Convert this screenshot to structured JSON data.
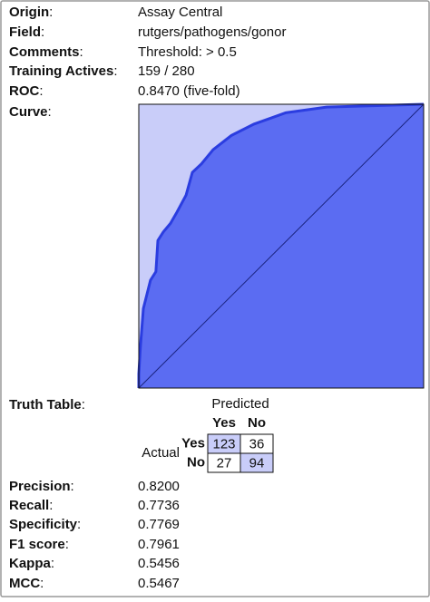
{
  "fields": [
    {
      "label": "Origin",
      "sep": ":",
      "value": "Assay Central"
    },
    {
      "label": "Field",
      "sep": ":",
      "value": "rutgers/pathogens/gonor"
    },
    {
      "label": "Comments",
      "sep": ":",
      "value": "Threshold: > 0.5"
    },
    {
      "label": "Training Actives",
      "sep": ":",
      "value": "159 / 280"
    },
    {
      "label": "ROC",
      "sep": ":",
      "value": "0.8470 (five-fold)"
    },
    {
      "label": "Curve",
      "sep": ":"
    }
  ],
  "chart_data": {
    "type": "line",
    "x": [
      0,
      0,
      0.006,
      0.016,
      0.041,
      0.06,
      0.067,
      0.086,
      0.111,
      0.134,
      0.166,
      0.188,
      0.22,
      0.261,
      0.325,
      0.404,
      0.516,
      0.659,
      1
    ],
    "series": [
      {
        "color": "#2b3de0",
        "values": [
          0,
          0.05,
          0.15,
          0.28,
          0.38,
          0.41,
          0.52,
          0.55,
          0.58,
          0.62,
          0.68,
          0.76,
          0.79,
          0.84,
          0.89,
          0.93,
          0.97,
          0.99,
          1
        ]
      }
    ],
    "xlim": [
      0,
      1
    ],
    "ylim": [
      0,
      1
    ],
    "fill": "#5b6cf2",
    "background": "#c9cdf9",
    "diagonal": true
  },
  "truth_table": {
    "label": "Truth Table",
    "sep": ":",
    "predicted": "Predicted",
    "actual": "Actual",
    "columns": [
      "Yes",
      "No"
    ],
    "rows": [
      {
        "label": "Yes",
        "cells": [
          "123",
          "36"
        ]
      },
      {
        "label": "No",
        "cells": [
          "27",
          "94"
        ]
      }
    ]
  },
  "metrics": [
    {
      "label": "Precision",
      "sep": ":",
      "value": "0.8200"
    },
    {
      "label": "Recall",
      "sep": ":",
      "value": "0.7736"
    },
    {
      "label": "Specificity",
      "sep": ":",
      "value": "0.7769"
    },
    {
      "label": "F1 score",
      "sep": ":",
      "value": "0.7961"
    },
    {
      "label": "Kappa",
      "sep": ":",
      "value": "0.5456"
    },
    {
      "label": "MCC",
      "sep": ":",
      "value": "0.5467"
    }
  ]
}
